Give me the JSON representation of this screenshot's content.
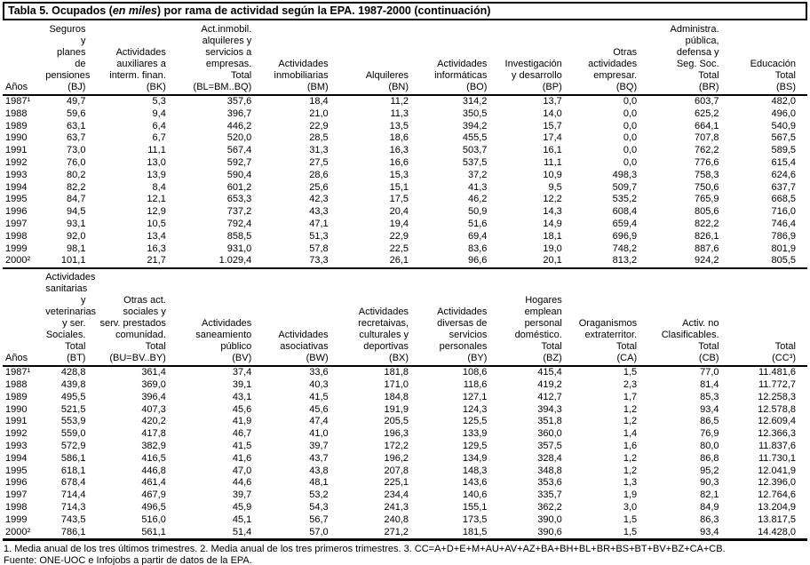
{
  "title": {
    "prefix": "Tabla 5. Ocupados (",
    "italic": "en miles",
    "suffix": ") por rama de actividad según la EPA. 1987-2000 (continuación)"
  },
  "tables": [
    {
      "year_label": "Años",
      "columns": [
        "Seguros y\nplanes de\npensiones\n(BJ)",
        "Actividades\nauxiliares a\ninterm. finan.\n(BK)",
        "Act.inmobil.\nalquileres y\nservicios a\nempresas.\nTotal\n(BL=BM..BQ)",
        "Actividades\ninmobiliarias\n(BM)",
        "Alquileres\n(BN)",
        "Actividades\ninformáticas\n(BO)",
        "Investigación\ny desarrollo\n(BP)",
        "Otras\nactividades\nempresar.\n(BQ)",
        "Administra.\npública,\ndefensa y\nSeg. Soc.\nTotal\n(BR)",
        "Educación\nTotal\n(BS)"
      ],
      "rows": [
        {
          "year": "1987¹",
          "values": [
            "49,7",
            "5,3",
            "357,6",
            "18,4",
            "11,2",
            "314,2",
            "13,7",
            "0,0",
            "603,7",
            "482,0"
          ]
        },
        {
          "year": "1988",
          "values": [
            "59,6",
            "9,4",
            "396,7",
            "21,0",
            "11,3",
            "350,5",
            "14,0",
            "0,0",
            "625,2",
            "496,0"
          ]
        },
        {
          "year": "1989",
          "values": [
            "63,1",
            "6,4",
            "446,2",
            "22,9",
            "13,5",
            "394,2",
            "15,7",
            "0,0",
            "664,1",
            "540,9"
          ]
        },
        {
          "year": "1990",
          "values": [
            "63,7",
            "6,7",
            "520,0",
            "28,5",
            "18,6",
            "455,5",
            "17,4",
            "0,0",
            "707,8",
            "567,5"
          ]
        },
        {
          "year": "1991",
          "values": [
            "73,0",
            "11,1",
            "567,4",
            "31,3",
            "16,3",
            "503,7",
            "16,1",
            "0,0",
            "762,2",
            "589,5"
          ]
        },
        {
          "year": "1992",
          "values": [
            "76,0",
            "13,0",
            "592,7",
            "27,5",
            "16,6",
            "537,5",
            "11,1",
            "0,0",
            "776,6",
            "615,4"
          ]
        },
        {
          "year": "1993",
          "values": [
            "80,2",
            "13,9",
            "590,4",
            "28,6",
            "15,3",
            "37,2",
            "10,9",
            "498,3",
            "758,3",
            "624,6"
          ]
        },
        {
          "year": "1994",
          "values": [
            "82,2",
            "8,4",
            "601,2",
            "25,6",
            "15,1",
            "41,3",
            "9,5",
            "509,7",
            "750,6",
            "637,7"
          ]
        },
        {
          "year": "1995",
          "values": [
            "84,7",
            "12,1",
            "653,3",
            "42,3",
            "17,5",
            "46,2",
            "12,2",
            "535,2",
            "765,9",
            "668,5"
          ]
        },
        {
          "year": "1996",
          "values": [
            "94,5",
            "12,9",
            "737,2",
            "43,3",
            "20,4",
            "50,9",
            "14,3",
            "608,4",
            "805,6",
            "716,0"
          ]
        },
        {
          "year": "1997",
          "values": [
            "93,1",
            "10,5",
            "792,4",
            "47,1",
            "19,4",
            "51,6",
            "14,9",
            "659,4",
            "822,2",
            "746,4"
          ]
        },
        {
          "year": "1998",
          "values": [
            "92,0",
            "13,4",
            "858,5",
            "51,3",
            "22,9",
            "69,4",
            "18,1",
            "696,9",
            "826,1",
            "786,9"
          ]
        },
        {
          "year": "1999",
          "values": [
            "98,1",
            "16,3",
            "931,0",
            "57,8",
            "22,5",
            "83,6",
            "19,0",
            "748,2",
            "887,6",
            "801,9"
          ]
        },
        {
          "year": "2000²",
          "values": [
            "101,1",
            "21,7",
            "1.029,4",
            "73,3",
            "26,1",
            "96,6",
            "20,1",
            "813,2",
            "924,2",
            "805,5"
          ]
        }
      ]
    },
    {
      "year_label": "Años",
      "columns": [
        "Actividades\nsanitarias y\nveterinarias\ny ser. Sociales.\nTotal\n(BT)",
        "Otras act.\nsociales y\nserv. prestados\ncomunidad.\nTotal\n(BU=BV..BY)",
        "Actividades\nsaneamiento\npúblico\n(BV)",
        "Actividades\nasociativas\n(BW)",
        "Actividades\nrecretaivas,\nculturales y\ndeportivas\n(BX)",
        "Actividades\ndiversas de\nservicios\npersonales\n(BY)",
        "Hogares\nemplean\npersonal\ndoméstico.\nTotal\n(BZ)",
        "Oraganismos\nextraterritor.\nTotal\n(CA)",
        "Activ. no\nClasificables.\nTotal\n(CB)",
        "Total\n(CC³)"
      ],
      "rows": [
        {
          "year": "1987¹",
          "values": [
            "428,8",
            "361,4",
            "37,4",
            "33,6",
            "181,8",
            "108,6",
            "415,4",
            "1,5",
            "77,0",
            "11.481,6"
          ]
        },
        {
          "year": "1988",
          "values": [
            "439,8",
            "369,0",
            "39,1",
            "40,3",
            "171,0",
            "118,6",
            "419,2",
            "2,3",
            "81,4",
            "11.772,7"
          ]
        },
        {
          "year": "1989",
          "values": [
            "495,5",
            "396,4",
            "43,1",
            "41,5",
            "184,8",
            "127,1",
            "412,7",
            "1,7",
            "85,3",
            "12.258,3"
          ]
        },
        {
          "year": "1990",
          "values": [
            "521,5",
            "407,3",
            "45,6",
            "45,6",
            "191,9",
            "124,3",
            "394,3",
            "1,2",
            "93,4",
            "12.578,8"
          ]
        },
        {
          "year": "1991",
          "values": [
            "553,9",
            "420,2",
            "41,9",
            "47,4",
            "205,5",
            "125,5",
            "351,8",
            "1,2",
            "86,5",
            "12.609,4"
          ]
        },
        {
          "year": "1992",
          "values": [
            "559,0",
            "417,8",
            "46,7",
            "41,0",
            "196,3",
            "133,9",
            "360,0",
            "1,4",
            "76,9",
            "12.366,3"
          ]
        },
        {
          "year": "1993",
          "values": [
            "572,9",
            "382,9",
            "41,5",
            "39,7",
            "172,2",
            "129,5",
            "357,5",
            "1,6",
            "80,0",
            "11.837,6"
          ]
        },
        {
          "year": "1994",
          "values": [
            "586,1",
            "416,5",
            "41,6",
            "43,7",
            "196,2",
            "134,9",
            "328,4",
            "1,2",
            "86,8",
            "11.730,1"
          ]
        },
        {
          "year": "1995",
          "values": [
            "618,1",
            "446,8",
            "47,0",
            "43,8",
            "207,8",
            "148,3",
            "348,8",
            "1,2",
            "95,2",
            "12.041,9"
          ]
        },
        {
          "year": "1996",
          "values": [
            "678,4",
            "461,4",
            "44,6",
            "48,1",
            "225,1",
            "143,6",
            "353,6",
            "1,3",
            "90,3",
            "12.396,0"
          ]
        },
        {
          "year": "1997",
          "values": [
            "714,4",
            "467,9",
            "39,7",
            "53,2",
            "234,4",
            "140,6",
            "335,7",
            "1,9",
            "82,1",
            "12.764,6"
          ]
        },
        {
          "year": "1998",
          "values": [
            "714,3",
            "496,5",
            "45,9",
            "54,3",
            "241,3",
            "155,1",
            "362,2",
            "3,0",
            "84,9",
            "13.204,9"
          ]
        },
        {
          "year": "1999",
          "values": [
            "743,5",
            "516,0",
            "45,1",
            "56,7",
            "240,8",
            "173,5",
            "390,0",
            "1,5",
            "86,3",
            "13.817,5"
          ]
        },
        {
          "year": "2000²",
          "values": [
            "786,1",
            "561,1",
            "51,4",
            "57,0",
            "271,2",
            "181,5",
            "390,6",
            "1,5",
            "93,4",
            "14.428,0"
          ]
        }
      ]
    }
  ],
  "footnotes": [
    "1. Media anual de los tres últimos trimestres. 2. Media anual de los tres primeros trimestres. 3. CC=A+D+E+M+AU+AV+AZ+BA+BH+BL+BR+BS+BT+BV+BZ+CA+CB.",
    "Fuente: ONE-UOC e Infojobs a partir de datos de la EPA."
  ]
}
